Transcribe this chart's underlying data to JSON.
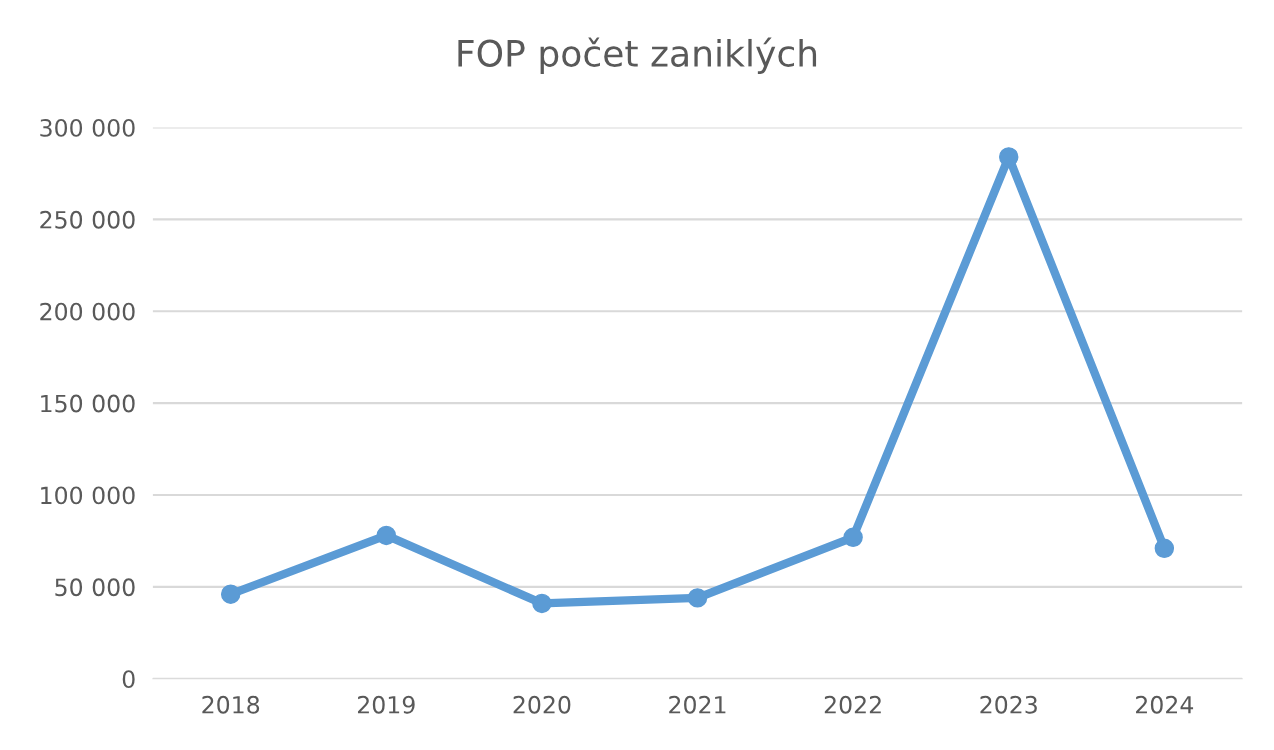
{
  "chart_data": {
    "type": "line",
    "title": "FOP počet zaniklých",
    "categories": [
      "2018",
      "2019",
      "2020",
      "2021",
      "2022",
      "2023",
      "2024"
    ],
    "series": [
      {
        "color": "#5b9bd5",
        "values": [
          46000,
          78000,
          41000,
          44000,
          77000,
          284000,
          71000
        ]
      }
    ],
    "ylim": [
      0,
      300000
    ],
    "yticks": [
      0,
      {
        "value": 50000,
        "label": "50 000"
      },
      {
        "value": 100000,
        "label": "100 000"
      },
      {
        "value": 150000,
        "label": "150 000"
      },
      {
        "value": 200000,
        "label": "200 000"
      },
      {
        "value": 250000,
        "label": "250 000"
      },
      {
        "value": 300000,
        "label": "300 000"
      }
    ],
    "grid": "y",
    "legend": false,
    "marker": "circle",
    "line_style": "solid"
  }
}
